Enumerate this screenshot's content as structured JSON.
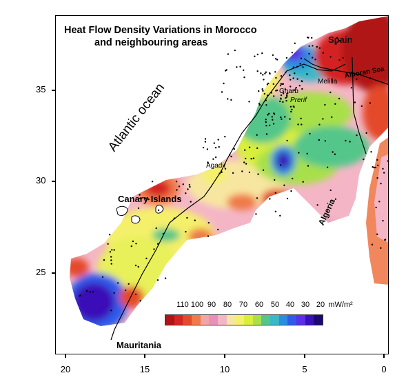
{
  "map": {
    "title_line1": "Heat Flow Density Variations in Morocco",
    "title_line2": "and neighbouring areas",
    "labels": {
      "atlantic": "Atlantic ocean",
      "canary": "Canary Islands",
      "agadir": "Agadir",
      "spain": "Spain",
      "gharb": "Gharb",
      "prerif": "Prerif",
      "melilla": "Melilla",
      "alboran": "Alboran Sea",
      "algeria": "Algeria",
      "mauritania": "Mauritania"
    },
    "y_ticks": [
      "35",
      "30",
      "25"
    ],
    "x_ticks": [
      "20",
      "15",
      "10",
      "5",
      "0"
    ],
    "colorbar": {
      "values": [
        "110",
        "100",
        "90",
        "80",
        "70",
        "60",
        "50",
        "40",
        "30",
        "20"
      ],
      "unit": "mW/m²",
      "colors": [
        "#b01414",
        "#d42424",
        "#e44a2c",
        "#ef7a4a",
        "#f2a5a5",
        "#e890b8",
        "#f4b6c6",
        "#f7e6a0",
        "#f4f06a",
        "#d9ef3a",
        "#a8e04a",
        "#55c68a",
        "#38b8c8",
        "#2a8de0",
        "#2f5bea",
        "#5a2fe6",
        "#3a10b8",
        "#1a0a70"
      ]
    }
  }
}
